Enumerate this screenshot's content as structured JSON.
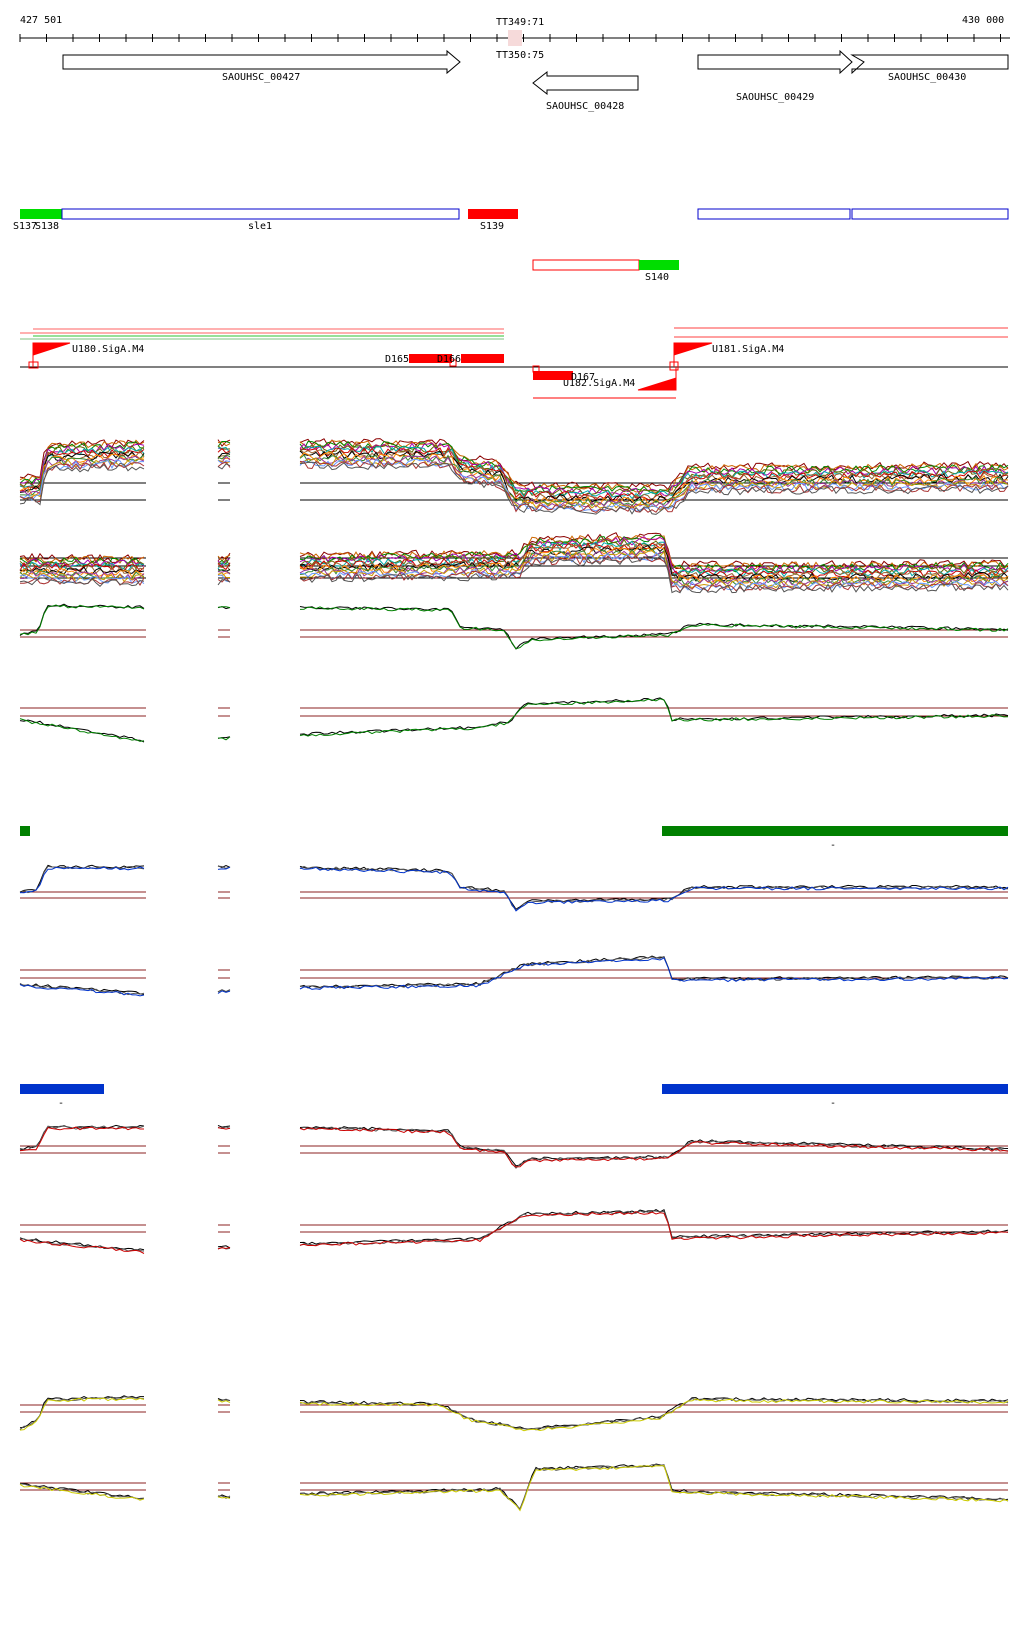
{
  "coordinate_axis": {
    "start_label": "427 501",
    "end_label": "430 000",
    "terminators": [
      "TT349:71",
      "TT350:75"
    ]
  },
  "genes": [
    {
      "name": "SAOUHSC_00427",
      "strand": "+"
    },
    {
      "name": "SAOUHSC_00428",
      "strand": "-"
    },
    {
      "name": "SAOUHSC_00429",
      "strand": "+"
    },
    {
      "name": "SAOUHSC_00430",
      "strand": "+"
    }
  ],
  "segments": {
    "row1": [
      "S137",
      "S138",
      "sle1",
      "S139"
    ],
    "row2": [
      "S140"
    ]
  },
  "promoters": [
    "U180.SigA.M4",
    "U181.SigA.M4",
    "U182.SigA.M4"
  ],
  "down_shifts": [
    "D165",
    "D166",
    "D167"
  ],
  "colors": {
    "segment_green": "#00dd00",
    "segment_red": "#ff0000",
    "segment_blue_outline": "#0000cc",
    "condition_green": "#008000",
    "condition_blue": "#0033cc",
    "condition_red": "#cc0000",
    "condition_yellow": "#cccc00",
    "threshold_line": "#8b2020"
  },
  "condition_groups": [
    {
      "name": "green",
      "color": "#008000"
    },
    {
      "name": "blue",
      "color": "#0033cc"
    },
    {
      "name": "red",
      "color": "#cc0000"
    },
    {
      "name": "yellow",
      "color": "#cccc00"
    }
  ],
  "bar_labels": {
    "green_right": "-",
    "blue_left": "-",
    "blue_right": "-"
  }
}
